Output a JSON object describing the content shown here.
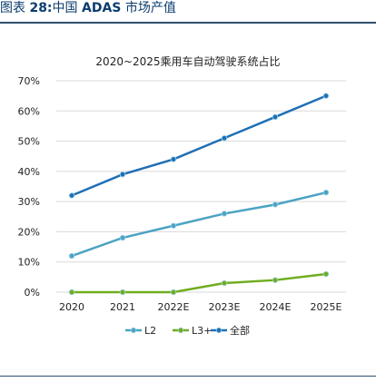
{
  "caption": {
    "prefix": "图表 ",
    "number": "28:",
    "rest": "中国 ",
    "bold_word": "ADAS",
    "suffix": " 市场产值"
  },
  "colors": {
    "L2": "#4ba3c3",
    "L3+": "#70ad1e",
    "全部": "#1f6fb5"
  },
  "chart_data": {
    "type": "line",
    "title": "2020~2025乘用车自动驾驶系统占比",
    "categories": [
      "2020",
      "2021",
      "2022E",
      "2023E",
      "2024E",
      "2025E"
    ],
    "ylim": [
      0,
      70
    ],
    "yticks": [
      "0%",
      "10%",
      "20%",
      "30%",
      "40%",
      "50%",
      "60%",
      "70%"
    ],
    "grid": true,
    "legend_position": "bottom",
    "series": [
      {
        "name": "L2",
        "values": [
          12,
          18,
          22,
          26,
          29,
          33
        ]
      },
      {
        "name": "L3+",
        "values": [
          0,
          0,
          0,
          3,
          4,
          6
        ]
      },
      {
        "name": "全部",
        "values": [
          32,
          39,
          44,
          51,
          58,
          65
        ]
      }
    ]
  }
}
